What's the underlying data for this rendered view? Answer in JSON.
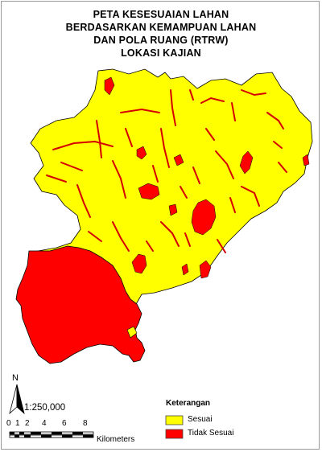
{
  "map": {
    "title_lines": [
      "PETA KESESUAIAN LAHAN",
      "BERDASARKAN KEMAMPUAN LAHAN",
      "DAN POLA RUANG (RTRW)",
      "LOKASI KAJIAN"
    ],
    "north_label": "N",
    "scale_text": "1:250,000",
    "scale_ticks": [
      "0",
      "1",
      "2",
      "4",
      "6",
      "8"
    ],
    "scale_units": "Kilometers",
    "legend": {
      "title": "Keterangan",
      "items": [
        {
          "label": "Sesuai",
          "color": "#ffff00"
        },
        {
          "label": "Tidak Sesuai",
          "color": "#ff0000"
        }
      ]
    },
    "outline_color": "#000000"
  }
}
